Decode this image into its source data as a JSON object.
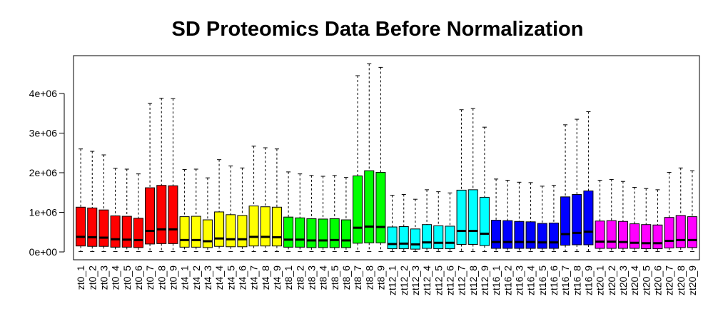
{
  "chart_data": {
    "type": "boxplot",
    "title": "SD Proteomics Data Before Normalization",
    "xlabel": "",
    "ylabel": "",
    "ylim": [
      -200000,
      4950000
    ],
    "y_ticks": [
      0,
      1000000,
      2000000,
      3000000,
      4000000
    ],
    "y_tick_labels": [
      "0e+00",
      "1e+06",
      "2e+06",
      "3e+06",
      "4e+06"
    ],
    "grid": false,
    "groups": [
      {
        "name": "zt0",
        "color": "#ff0000"
      },
      {
        "name": "zt4",
        "color": "#ffff00"
      },
      {
        "name": "zt8",
        "color": "#00ff00"
      },
      {
        "name": "zt12",
        "color": "#00ffff"
      },
      {
        "name": "zt16",
        "color": "#0000ff"
      },
      {
        "name": "zt20",
        "color": "#ff00ff"
      }
    ],
    "boxes": [
      {
        "label": "zt0_1",
        "group": 0,
        "min": 10000,
        "q1": 150000,
        "median": 380000,
        "q3": 1130000,
        "max": 2600000
      },
      {
        "label": "zt0_2",
        "group": 0,
        "min": 10000,
        "q1": 140000,
        "median": 370000,
        "q3": 1110000,
        "max": 2540000
      },
      {
        "label": "zt0_3",
        "group": 0,
        "min": 10000,
        "q1": 140000,
        "median": 360000,
        "q3": 1060000,
        "max": 2450000
      },
      {
        "label": "zt0_4",
        "group": 0,
        "min": 10000,
        "q1": 120000,
        "median": 320000,
        "q3": 910000,
        "max": 2110000
      },
      {
        "label": "zt0_5",
        "group": 0,
        "min": 10000,
        "q1": 120000,
        "median": 310000,
        "q3": 900000,
        "max": 2090000
      },
      {
        "label": "zt0_6",
        "group": 0,
        "min": 10000,
        "q1": 110000,
        "median": 300000,
        "q3": 850000,
        "max": 1970000
      },
      {
        "label": "zt0_7",
        "group": 0,
        "min": 10000,
        "q1": 200000,
        "median": 530000,
        "q3": 1620000,
        "max": 3750000
      },
      {
        "label": "zt0_8",
        "group": 0,
        "min": 10000,
        "q1": 210000,
        "median": 570000,
        "q3": 1680000,
        "max": 3880000
      },
      {
        "label": "zt0_9",
        "group": 0,
        "min": 10000,
        "q1": 210000,
        "median": 570000,
        "q3": 1670000,
        "max": 3870000
      },
      {
        "label": "zt4_1",
        "group": 1,
        "min": 10000,
        "q1": 120000,
        "median": 300000,
        "q3": 890000,
        "max": 2080000
      },
      {
        "label": "zt4_2",
        "group": 1,
        "min": 10000,
        "q1": 120000,
        "median": 300000,
        "q3": 900000,
        "max": 2090000
      },
      {
        "label": "zt4_3",
        "group": 1,
        "min": 10000,
        "q1": 110000,
        "median": 270000,
        "q3": 810000,
        "max": 1870000
      },
      {
        "label": "zt4_4",
        "group": 1,
        "min": 10000,
        "q1": 140000,
        "median": 340000,
        "q3": 1010000,
        "max": 2330000
      },
      {
        "label": "zt4_5",
        "group": 1,
        "min": 10000,
        "q1": 130000,
        "median": 320000,
        "q3": 940000,
        "max": 2170000
      },
      {
        "label": "zt4_6",
        "group": 1,
        "min": 10000,
        "q1": 130000,
        "median": 320000,
        "q3": 920000,
        "max": 2120000
      },
      {
        "label": "zt4_7",
        "group": 1,
        "min": 10000,
        "q1": 150000,
        "median": 380000,
        "q3": 1160000,
        "max": 2670000
      },
      {
        "label": "zt4_8",
        "group": 1,
        "min": 10000,
        "q1": 150000,
        "median": 380000,
        "q3": 1140000,
        "max": 2630000
      },
      {
        "label": "zt4_9",
        "group": 1,
        "min": 10000,
        "q1": 150000,
        "median": 370000,
        "q3": 1130000,
        "max": 2600000
      },
      {
        "label": "zt8_1",
        "group": 2,
        "min": 10000,
        "q1": 120000,
        "median": 310000,
        "q3": 880000,
        "max": 2020000
      },
      {
        "label": "zt8_2",
        "group": 2,
        "min": 10000,
        "q1": 120000,
        "median": 310000,
        "q3": 860000,
        "max": 1970000
      },
      {
        "label": "zt8_3",
        "group": 2,
        "min": 10000,
        "q1": 110000,
        "median": 290000,
        "q3": 840000,
        "max": 1930000
      },
      {
        "label": "zt8_4",
        "group": 2,
        "min": 10000,
        "q1": 110000,
        "median": 290000,
        "q3": 830000,
        "max": 1910000
      },
      {
        "label": "zt8_5",
        "group": 2,
        "min": 10000,
        "q1": 110000,
        "median": 300000,
        "q3": 840000,
        "max": 1930000
      },
      {
        "label": "zt8_6",
        "group": 2,
        "min": 10000,
        "q1": 110000,
        "median": 290000,
        "q3": 810000,
        "max": 1880000
      },
      {
        "label": "zt8_7",
        "group": 2,
        "min": 10000,
        "q1": 220000,
        "median": 610000,
        "q3": 1920000,
        "max": 4450000
      },
      {
        "label": "zt8_8",
        "group": 2,
        "min": 10000,
        "q1": 230000,
        "median": 640000,
        "q3": 2050000,
        "max": 4750000
      },
      {
        "label": "zt8_9",
        "group": 2,
        "min": 10000,
        "q1": 230000,
        "median": 630000,
        "q3": 2010000,
        "max": 4660000
      },
      {
        "label": "zt12_1",
        "group": 3,
        "min": 10000,
        "q1": 80000,
        "median": 200000,
        "q3": 630000,
        "max": 1430000
      },
      {
        "label": "zt12_2",
        "group": 3,
        "min": 10000,
        "q1": 80000,
        "median": 210000,
        "q3": 640000,
        "max": 1450000
      },
      {
        "label": "zt12_3",
        "group": 3,
        "min": 10000,
        "q1": 70000,
        "median": 190000,
        "q3": 580000,
        "max": 1330000
      },
      {
        "label": "zt12_4",
        "group": 3,
        "min": 10000,
        "q1": 90000,
        "median": 240000,
        "q3": 690000,
        "max": 1570000
      },
      {
        "label": "zt12_5",
        "group": 3,
        "min": 10000,
        "q1": 80000,
        "median": 230000,
        "q3": 660000,
        "max": 1520000
      },
      {
        "label": "zt12_6",
        "group": 3,
        "min": 10000,
        "q1": 80000,
        "median": 230000,
        "q3": 650000,
        "max": 1490000
      },
      {
        "label": "zt12_7",
        "group": 3,
        "min": 10000,
        "q1": 190000,
        "median": 530000,
        "q3": 1560000,
        "max": 3590000
      },
      {
        "label": "zt12_8",
        "group": 3,
        "min": 10000,
        "q1": 190000,
        "median": 530000,
        "q3": 1570000,
        "max": 3620000
      },
      {
        "label": "zt12_9",
        "group": 3,
        "min": 10000,
        "q1": 160000,
        "median": 460000,
        "q3": 1380000,
        "max": 3150000
      },
      {
        "label": "zt16_1",
        "group": 4,
        "min": 10000,
        "q1": 90000,
        "median": 250000,
        "q3": 800000,
        "max": 1840000
      },
      {
        "label": "zt16_2",
        "group": 4,
        "min": 10000,
        "q1": 90000,
        "median": 250000,
        "q3": 790000,
        "max": 1810000
      },
      {
        "label": "zt16_3",
        "group": 4,
        "min": 10000,
        "q1": 90000,
        "median": 250000,
        "q3": 770000,
        "max": 1760000
      },
      {
        "label": "zt16_4",
        "group": 4,
        "min": 10000,
        "q1": 90000,
        "median": 250000,
        "q3": 760000,
        "max": 1750000
      },
      {
        "label": "zt16_5",
        "group": 4,
        "min": 10000,
        "q1": 90000,
        "median": 240000,
        "q3": 720000,
        "max": 1660000
      },
      {
        "label": "zt16_6",
        "group": 4,
        "min": 10000,
        "q1": 90000,
        "median": 240000,
        "q3": 730000,
        "max": 1680000
      },
      {
        "label": "zt16_7",
        "group": 4,
        "min": 10000,
        "q1": 170000,
        "median": 450000,
        "q3": 1390000,
        "max": 3210000
      },
      {
        "label": "zt16_8",
        "group": 4,
        "min": 10000,
        "q1": 180000,
        "median": 480000,
        "q3": 1450000,
        "max": 3350000
      },
      {
        "label": "zt16_9",
        "group": 4,
        "min": 10000,
        "q1": 180000,
        "median": 510000,
        "q3": 1540000,
        "max": 3540000
      },
      {
        "label": "zt20_1",
        "group": 5,
        "min": 10000,
        "q1": 90000,
        "median": 260000,
        "q3": 780000,
        "max": 1810000
      },
      {
        "label": "zt20_2",
        "group": 5,
        "min": 10000,
        "q1": 90000,
        "median": 260000,
        "q3": 790000,
        "max": 1830000
      },
      {
        "label": "zt20_3",
        "group": 5,
        "min": 10000,
        "q1": 90000,
        "median": 250000,
        "q3": 770000,
        "max": 1780000
      },
      {
        "label": "zt20_4",
        "group": 5,
        "min": 10000,
        "q1": 90000,
        "median": 230000,
        "q3": 710000,
        "max": 1630000
      },
      {
        "label": "zt20_5",
        "group": 5,
        "min": 10000,
        "q1": 80000,
        "median": 220000,
        "q3": 690000,
        "max": 1600000
      },
      {
        "label": "zt20_6",
        "group": 5,
        "min": 10000,
        "q1": 80000,
        "median": 220000,
        "q3": 680000,
        "max": 1570000
      },
      {
        "label": "zt20_7",
        "group": 5,
        "min": 10000,
        "q1": 100000,
        "median": 280000,
        "q3": 870000,
        "max": 2010000
      },
      {
        "label": "zt20_8",
        "group": 5,
        "min": 10000,
        "q1": 110000,
        "median": 300000,
        "q3": 920000,
        "max": 2120000
      },
      {
        "label": "zt20_9",
        "group": 5,
        "min": 10000,
        "q1": 110000,
        "median": 300000,
        "q3": 890000,
        "max": 2050000
      }
    ]
  }
}
